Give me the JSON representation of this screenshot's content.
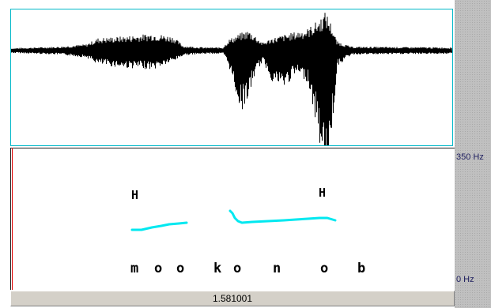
{
  "axis": {
    "pitch_max": "350 Hz",
    "pitch_min": "0 Hz"
  },
  "status": {
    "time": "1.581001"
  },
  "tones": [
    {
      "label": "H"
    },
    {
      "label": "H"
    }
  ],
  "segments": [
    "m",
    "o",
    "o",
    "k",
    "o",
    "n",
    "o",
    "b"
  ],
  "colors": {
    "waveform": "#000000",
    "pitch_track": "#00e8f0",
    "panel_border": "#00b8c8",
    "cursor": "#e00000",
    "margin": "#c0c0c0"
  }
}
